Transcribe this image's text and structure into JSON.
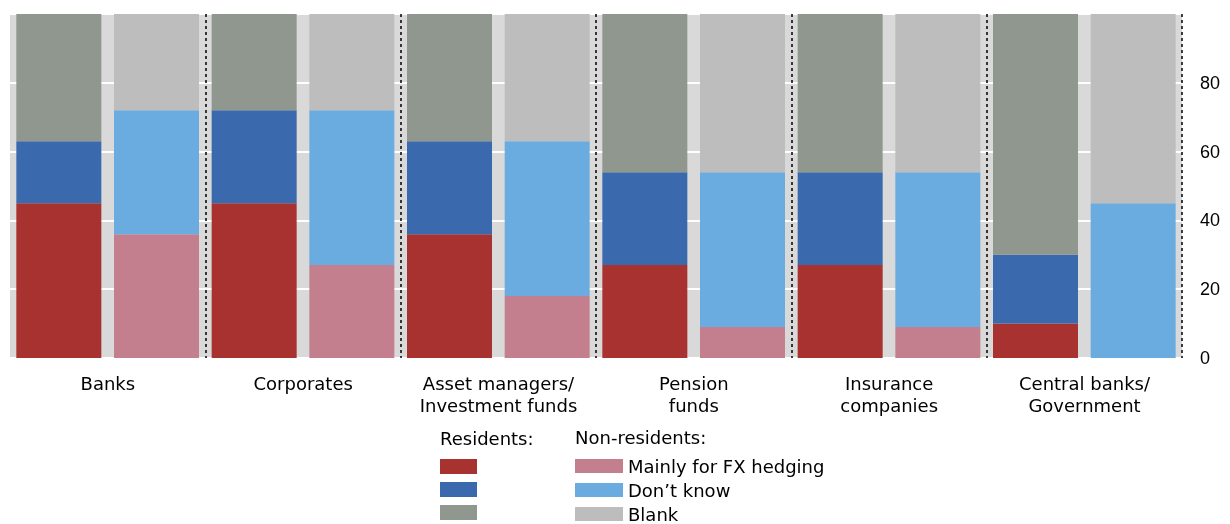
{
  "chart_data": {
    "type": "bar",
    "stacked": true,
    "categories": [
      "Banks",
      null,
      "Corporates",
      null,
      "Asset managers/\nInvestment funds",
      null,
      "Pension\nfunds",
      null,
      "Insurance\ncompanies",
      null,
      "Central banks/\nGovernment",
      null
    ],
    "series": [
      {
        "color": "#a83230",
        "values": [
          45,
          null,
          45,
          null,
          36,
          null,
          27,
          null,
          27,
          null,
          10,
          null
        ]
      },
      {
        "color": "#3a6aad",
        "values": [
          18,
          null,
          27,
          null,
          27,
          null,
          27,
          null,
          27,
          null,
          20,
          null
        ]
      },
      {
        "color": "#90978f",
        "values": [
          37,
          null,
          28,
          null,
          37,
          null,
          46,
          null,
          46,
          null,
          70,
          null
        ]
      },
      {
        "name": "Mainly for FX hedging",
        "color": "#c47f8f",
        "values": [
          null,
          36,
          null,
          27,
          null,
          18,
          null,
          9,
          null,
          9,
          null,
          0
        ]
      },
      {
        "name": "Don’t know",
        "color": "#6aace0",
        "values": [
          null,
          36,
          null,
          45,
          null,
          45,
          null,
          45,
          null,
          45,
          null,
          45
        ]
      },
      {
        "name": "Blank",
        "color": "#bdbdbd",
        "values": [
          null,
          28,
          null,
          28,
          null,
          37,
          null,
          46,
          null,
          46,
          null,
          55
        ]
      }
    ],
    "ylim": [
      0,
      100
    ],
    "yticks": [
      0,
      20,
      40,
      60,
      80,
      {
        "value": 100,
        "label": null
      }
    ],
    "grid": true,
    "legend": "bottom",
    "legend_title": "Non-residents:",
    "annotations": [
      "Residents:"
    ]
  }
}
